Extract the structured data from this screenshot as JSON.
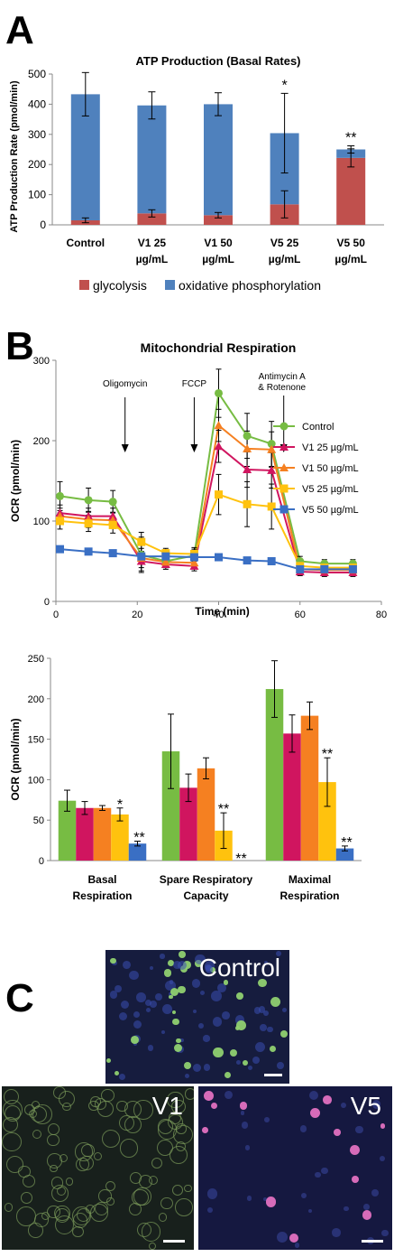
{
  "panels": {
    "a": "A",
    "b": "B",
    "c": "C"
  },
  "chart_data": [
    {
      "type": "bar",
      "title": "ATP Production (Basal Rates)",
      "ylabel": "ATP Production Rate (pmol/min)",
      "ylim": [
        0,
        500
      ],
      "yticks": [
        0,
        100,
        200,
        300,
        400,
        500
      ],
      "categories": [
        [
          "Control"
        ],
        [
          "V1 25",
          "µg/mL"
        ],
        [
          "V1 50",
          "µg/mL"
        ],
        [
          "V5 25",
          "µg/mL"
        ],
        [
          "V5 50",
          "µg/mL"
        ]
      ],
      "stacked": true,
      "series": [
        {
          "name": "glycolysis",
          "color": "#c0504d",
          "values": [
            15,
            38,
            32,
            68,
            222
          ],
          "errors": [
            8,
            12,
            9,
            45,
            30
          ]
        },
        {
          "name": "oxidative phosphorylation",
          "color": "#4f81bd",
          "values": [
            418,
            358,
            368,
            236,
            28
          ],
          "errors": [
            72,
            45,
            38,
            132,
            12
          ]
        }
      ],
      "annotations": [
        {
          "category": 3,
          "text": "*"
        },
        {
          "category": 4,
          "text": "**"
        }
      ],
      "legend": "bottom",
      "grid": false
    },
    {
      "type": "line",
      "title": "Mitochondrial Respiration",
      "xlabel": "Time (min)",
      "ylabel": "OCR (pmol/min)",
      "xlim": [
        0,
        80
      ],
      "ylim": [
        0,
        300
      ],
      "xticks": [
        0,
        20,
        40,
        60,
        80
      ],
      "yticks": [
        0,
        100,
        200,
        300
      ],
      "x": [
        1,
        8,
        14,
        21,
        27,
        34,
        40,
        47,
        53,
        60,
        66,
        73
      ],
      "series": [
        {
          "name": "Control",
          "color": "#77bc43",
          "marker": "circle",
          "values": [
            131,
            126,
            124,
            58,
            50,
            57,
            259,
            206,
            196,
            50,
            47,
            47
          ],
          "errors": [
            18,
            15,
            14,
            22,
            8,
            10,
            30,
            28,
            28,
            6,
            5,
            5
          ]
        },
        {
          "name": "V1 25 µg/mL",
          "color": "#d0155f",
          "marker": "triangle",
          "values": [
            110,
            106,
            106,
            50,
            46,
            44,
            193,
            164,
            163,
            37,
            36,
            36
          ],
          "errors": [
            10,
            10,
            10,
            12,
            6,
            6,
            20,
            22,
            22,
            5,
            5,
            5
          ]
        },
        {
          "name": "V1 50 µg/mL",
          "color": "#f58021",
          "marker": "triangle",
          "values": [
            106,
            102,
            101,
            54,
            49,
            48,
            219,
            190,
            189,
            40,
            39,
            39
          ],
          "errors": [
            10,
            10,
            10,
            12,
            6,
            6,
            20,
            22,
            22,
            5,
            5,
            5
          ]
        },
        {
          "name": "V5 25 µg/mL",
          "color": "#ffc20e",
          "marker": "square",
          "values": [
            100,
            97,
            95,
            74,
            60,
            59,
            133,
            121,
            118,
            44,
            42,
            42
          ],
          "errors": [
            10,
            10,
            10,
            12,
            6,
            6,
            25,
            28,
            28,
            5,
            5,
            5
          ]
        },
        {
          "name": "V5 50 µg/mL",
          "color": "#3a6fc4",
          "marker": "square",
          "values": [
            65,
            62,
            60,
            56,
            56,
            55,
            55,
            51,
            50,
            40,
            40,
            40
          ],
          "errors": [
            4,
            4,
            4,
            6,
            4,
            4,
            4,
            4,
            4,
            4,
            4,
            4
          ]
        }
      ],
      "annotations": [
        {
          "x": 17,
          "text": "Oligomycin"
        },
        {
          "x": 34,
          "text": "FCCP"
        },
        {
          "x": 56,
          "text": "Antimycin A\n& Rotenone"
        }
      ],
      "legend": "right",
      "grid": false
    },
    {
      "type": "bar",
      "ylabel": "OCR (pmol/min)",
      "ylim": [
        0,
        250
      ],
      "yticks": [
        0,
        50,
        100,
        150,
        200,
        250
      ],
      "categories": [
        [
          "Basal",
          "Respiration"
        ],
        [
          "Spare Respiratory",
          "Capacity"
        ],
        [
          "Maximal",
          "Respiration"
        ]
      ],
      "series": [
        {
          "name": "Control",
          "color": "#77bc43",
          "values": [
            74,
            135,
            212
          ],
          "errors": [
            13,
            46,
            35
          ]
        },
        {
          "name": "V1 25 µg/mL",
          "color": "#d0155f",
          "values": [
            65,
            90,
            157
          ],
          "errors": [
            8,
            17,
            23
          ]
        },
        {
          "name": "V1 50 µg/mL",
          "color": "#f58021",
          "values": [
            65,
            114,
            179
          ],
          "errors": [
            3,
            13,
            17
          ]
        },
        {
          "name": "V5 25 µg/mL",
          "color": "#ffc20e",
          "values": [
            57,
            37,
            97
          ],
          "errors": [
            8,
            22,
            30
          ]
        },
        {
          "name": "V5 50 µg/mL",
          "color": "#3a6fc4",
          "values": [
            21,
            0,
            15
          ],
          "errors": [
            3,
            0,
            3
          ]
        }
      ],
      "annotations": [
        {
          "group": 0,
          "series": 3,
          "text": "*"
        },
        {
          "group": 0,
          "series": 4,
          "text": "**"
        },
        {
          "group": 1,
          "series": 3,
          "text": "**"
        },
        {
          "group": 1,
          "series": 4,
          "text": "**"
        },
        {
          "group": 2,
          "series": 3,
          "text": "**"
        },
        {
          "group": 2,
          "series": 4,
          "text": "**"
        }
      ],
      "grid": false
    }
  ],
  "micrographs": [
    {
      "label": "Control",
      "cell_color": "#8fd070",
      "nuclei_color": "#3a4fb0",
      "background": "#161c3e"
    },
    {
      "label": "V1",
      "cell_color": "#7a9a5a",
      "nuclei_color": "#4a60b8",
      "background": "#18201c"
    },
    {
      "label": "V5",
      "cell_color": "#e070c0",
      "nuclei_color": "#3a48a0",
      "background": "#151840"
    }
  ]
}
